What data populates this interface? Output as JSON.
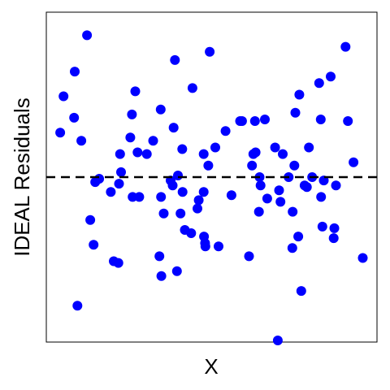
{
  "chart_data": {
    "type": "scatter",
    "xlabel": "X",
    "ylabel": "IDEAL Residuals",
    "xlim": [
      0,
      100
    ],
    "ylim": [
      -10,
      10
    ],
    "reference_line": {
      "y": 0,
      "style": "dashed",
      "color": "#000000"
    },
    "point_color": "#0000ff",
    "x_ticks": "none",
    "y_ticks": "none",
    "grid": false,
    "legend": "none",
    "series": [
      {
        "points": [
          [
            4.2,
            2.7
          ],
          [
            5.2,
            4.9
          ],
          [
            8.4,
            3.6
          ],
          [
            8.6,
            6.4
          ],
          [
            9.4,
            -7.8
          ],
          [
            10.6,
            2.2
          ],
          [
            12.3,
            8.6
          ],
          [
            13.3,
            -2.6
          ],
          [
            14.3,
            -4.1
          ],
          [
            14.8,
            -0.3
          ],
          [
            16.0,
            -0.1
          ],
          [
            19.5,
            -0.9
          ],
          [
            20.4,
            -5.1
          ],
          [
            21.8,
            -5.2
          ],
          [
            22.0,
            -0.4
          ],
          [
            22.3,
            1.4
          ],
          [
            22.6,
            0.3
          ],
          [
            25.4,
            2.4
          ],
          [
            25.9,
            3.8
          ],
          [
            26.1,
            -1.2
          ],
          [
            26.9,
            5.2
          ],
          [
            27.6,
            1.5
          ],
          [
            28.1,
            -1.2
          ],
          [
            30.4,
            1.4
          ],
          [
            32.3,
            2.2
          ],
          [
            34.2,
            -4.8
          ],
          [
            34.7,
            -1.2
          ],
          [
            34.6,
            4.1
          ],
          [
            34.8,
            -6.0
          ],
          [
            35.5,
            -2.2
          ],
          [
            37.6,
            -0.2
          ],
          [
            38.2,
            -0.5
          ],
          [
            38.5,
            3.0
          ],
          [
            38.9,
            7.1
          ],
          [
            39.5,
            -5.7
          ],
          [
            39.8,
            0.1
          ],
          [
            40.6,
            -2.2
          ],
          [
            41.2,
            -0.9
          ],
          [
            41.1,
            1.7
          ],
          [
            41.9,
            -3.2
          ],
          [
            43.8,
            -3.4
          ],
          [
            44.2,
            5.4
          ],
          [
            45.7,
            -1.9
          ],
          [
            46.1,
            -1.4
          ],
          [
            47.6,
            -0.9
          ],
          [
            47.7,
            -3.6
          ],
          [
            47.6,
            1.4
          ],
          [
            48.0,
            -4.0
          ],
          [
            48.1,
            -4.2
          ],
          [
            49.0,
            0.7
          ],
          [
            49.4,
            7.6
          ],
          [
            51.1,
            1.8
          ],
          [
            52.1,
            -4.2
          ],
          [
            54.2,
            2.8
          ],
          [
            56.0,
            -1.1
          ],
          [
            58.6,
            3.4
          ],
          [
            59.2,
            3.4
          ],
          [
            61.3,
            -4.8
          ],
          [
            62.2,
            0.7
          ],
          [
            62.6,
            1.4
          ],
          [
            63.1,
            3.4
          ],
          [
            63.3,
            1.5
          ],
          [
            64.3,
            -2.1
          ],
          [
            64.5,
            0.0
          ],
          [
            64.8,
            -0.5
          ],
          [
            66.1,
            3.5
          ],
          [
            66.8,
            -1.3
          ],
          [
            69.2,
            1.8
          ],
          [
            70.0,
            -9.9
          ],
          [
            70.4,
            -0.8
          ],
          [
            70.8,
            -1.5
          ],
          [
            71.5,
            1.4
          ],
          [
            73.3,
            0.0
          ],
          [
            74.4,
            -4.3
          ],
          [
            74.5,
            -2.1
          ],
          [
            75.0,
            0.7
          ],
          [
            75.3,
            3.9
          ],
          [
            76.2,
            -3.6
          ],
          [
            76.5,
            5.0
          ],
          [
            77.1,
            -6.9
          ],
          [
            78.1,
            -0.5
          ],
          [
            78.8,
            -0.6
          ],
          [
            79.4,
            1.8
          ],
          [
            80.4,
            0.0
          ],
          [
            82.5,
            5.7
          ],
          [
            83.0,
            3.5
          ],
          [
            83.1,
            -1.2
          ],
          [
            83.5,
            -3.0
          ],
          [
            83.9,
            -0.2
          ],
          [
            86.0,
            6.1
          ],
          [
            86.9,
            -3.7
          ],
          [
            87.1,
            -3.1
          ],
          [
            87.6,
            -0.5
          ],
          [
            90.5,
            7.9
          ],
          [
            91.2,
            3.4
          ],
          [
            92.9,
            0.9
          ],
          [
            95.7,
            -4.9
          ]
        ]
      }
    ]
  }
}
